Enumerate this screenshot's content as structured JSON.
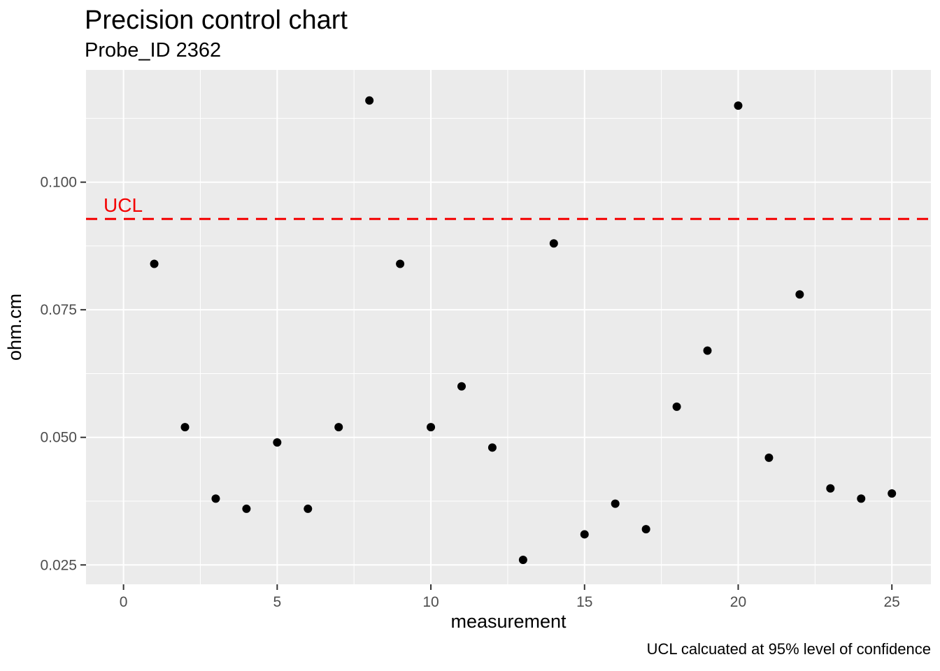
{
  "title": "Precision control chart",
  "subtitle": "Probe_ID 2362",
  "caption": "UCL calcuated at 95% level of confidence",
  "chart_data": {
    "type": "scatter",
    "title": "Precision control chart",
    "subtitle": "Probe_ID 2362",
    "xlabel": "measurement",
    "ylabel": "ohm.cm",
    "x": [
      1,
      2,
      3,
      4,
      5,
      6,
      7,
      8,
      9,
      10,
      11,
      12,
      13,
      14,
      15,
      16,
      17,
      18,
      19,
      20,
      21,
      22,
      23,
      24,
      25
    ],
    "y": [
      0.084,
      0.052,
      0.038,
      0.036,
      0.049,
      0.036,
      0.052,
      0.116,
      0.084,
      0.052,
      0.06,
      0.048,
      0.026,
      0.088,
      0.031,
      0.037,
      0.032,
      0.056,
      0.067,
      0.115,
      0.046,
      0.078,
      0.04,
      0.038,
      0.039
    ],
    "xlim": [
      -1.22,
      26.27
    ],
    "ylim": [
      0.0212,
      0.122
    ],
    "x_major_ticks": [
      0,
      5,
      10,
      15,
      20,
      25
    ],
    "x_minor_ticks": [
      2.5,
      7.5,
      12.5,
      17.5,
      22.5
    ],
    "x_tick_labels": [
      "0",
      "5",
      "10",
      "15",
      "20",
      "25"
    ],
    "y_major_ticks": [
      0.025,
      0.05,
      0.075,
      0.1
    ],
    "y_minor_ticks": [
      0.0375,
      0.0625,
      0.0875,
      0.1125
    ],
    "y_tick_labels": [
      "0.025",
      "0.050",
      "0.075",
      "0.100"
    ],
    "ucl": {
      "value": 0.0928,
      "label": "UCL"
    },
    "grid": true,
    "legend_position": "none",
    "point_radius_px": 6,
    "colors": {
      "point": "#000000",
      "panel_background": "#EBEBEB",
      "gridline": "#FFFFFF",
      "ucl_red": "#F40000",
      "tick_label": "#4D4D4D",
      "tick_mark": "#333333",
      "text": "#000000"
    }
  }
}
